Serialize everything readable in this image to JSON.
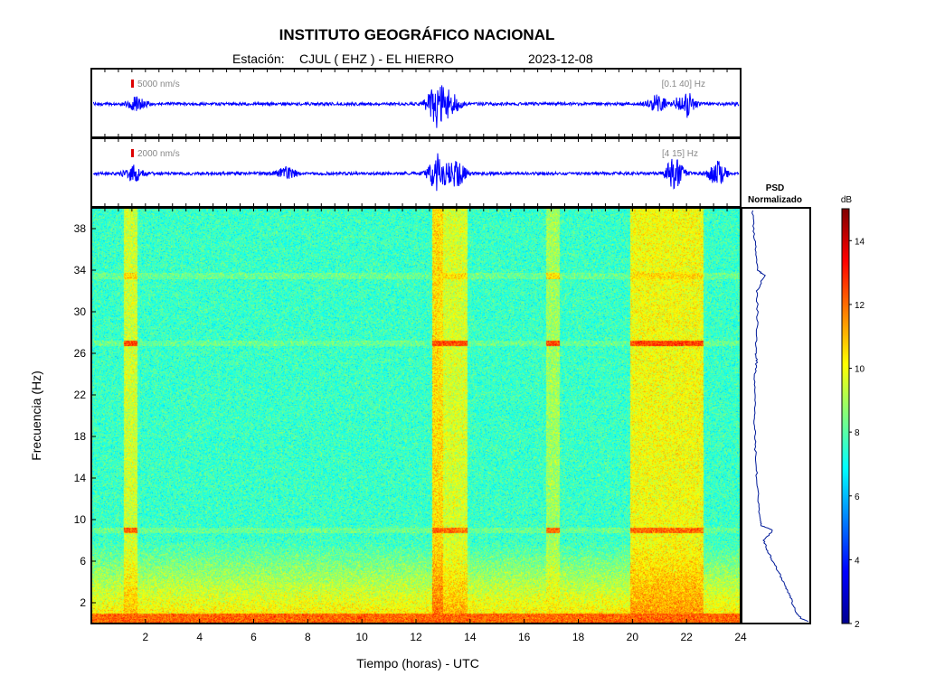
{
  "header": {
    "title": "INSTITUTO GEOGRÁFICO NACIONAL",
    "station_label": "Estación:",
    "station": "CJUL ( EHZ ) - EL HIERRO",
    "date": "2023-12-08"
  },
  "colors": {
    "trace": "#0000ff",
    "scale_mark": "#dd0000",
    "psd_line": "#001a99",
    "frame": "#000000"
  },
  "chart_data": [
    {
      "type": "line",
      "panel": "seismogram-broadband",
      "scale_label": "5000 nm/s",
      "band_label": "[0.1 40] Hz",
      "x_range": [
        0,
        24
      ],
      "bursts": [
        {
          "t": 12.75,
          "amplitude": 0.9
        },
        {
          "t": 13.3,
          "amplitude": 0.45
        },
        {
          "t": 21.0,
          "amplitude": 0.35
        },
        {
          "t": 22.0,
          "amplitude": 0.55
        },
        {
          "t": 1.6,
          "amplitude": 0.3
        }
      ]
    },
    {
      "type": "line",
      "panel": "seismogram-filtered",
      "scale_label": "2000 nm/s",
      "band_label": "[4 15] Hz",
      "x_range": [
        0,
        24
      ],
      "bursts": [
        {
          "t": 12.8,
          "amplitude": 0.75
        },
        {
          "t": 13.5,
          "amplitude": 0.55
        },
        {
          "t": 7.2,
          "amplitude": 0.3
        },
        {
          "t": 21.6,
          "amplitude": 0.6
        },
        {
          "t": 23.2,
          "amplitude": 0.45
        },
        {
          "t": 1.5,
          "amplitude": 0.3
        }
      ]
    },
    {
      "type": "heatmap",
      "panel": "spectrogram",
      "xlabel": "Tiempo (horas) - UTC",
      "ylabel": "Frecuencia  (Hz)",
      "x_range": [
        0,
        24
      ],
      "y_range": [
        0,
        40
      ],
      "x_ticks": [
        2,
        4,
        6,
        8,
        10,
        12,
        14,
        16,
        18,
        20,
        22,
        24
      ],
      "y_ticks": [
        2,
        6,
        10,
        14,
        18,
        22,
        26,
        30,
        34,
        38
      ],
      "colorbar": {
        "label": "dB",
        "range": [
          2,
          15
        ],
        "ticks": [
          2,
          4,
          6,
          8,
          10,
          12,
          14
        ],
        "colormap": "jet"
      },
      "background_level_db": 7.6,
      "high_energy_bands": [
        {
          "t_start": 12.6,
          "t_end": 13.0,
          "level_db": 10.5
        },
        {
          "t_start": 13.0,
          "t_end": 13.9,
          "level_db": 9.6
        },
        {
          "t_start": 19.9,
          "t_end": 22.6,
          "level_db": 10.0
        },
        {
          "t_start": 1.2,
          "t_end": 1.7,
          "level_db": 9.5
        },
        {
          "t_start": 16.8,
          "t_end": 17.3,
          "level_db": 8.9
        }
      ],
      "narrow_lines": [
        {
          "freq": 9.0,
          "level_db": 12.0
        },
        {
          "freq": 27.0,
          "level_db": 12.5
        },
        {
          "freq": 33.5,
          "level_db": 10.5
        }
      ]
    },
    {
      "type": "line",
      "panel": "psd-normalized",
      "title_line1": "PSD",
      "title_line2": "Normalizado",
      "y_range": [
        0,
        40
      ],
      "points": [
        {
          "f": 0.2,
          "v": 1.0
        },
        {
          "f": 0.5,
          "v": 0.9
        },
        {
          "f": 1.0,
          "v": 0.82
        },
        {
          "f": 2.0,
          "v": 0.76
        },
        {
          "f": 3.0,
          "v": 0.7
        },
        {
          "f": 4.0,
          "v": 0.62
        },
        {
          "f": 5.0,
          "v": 0.54
        },
        {
          "f": 6.0,
          "v": 0.45
        },
        {
          "f": 7.0,
          "v": 0.37
        },
        {
          "f": 8.0,
          "v": 0.31
        },
        {
          "f": 9.0,
          "v": 0.45
        },
        {
          "f": 9.4,
          "v": 0.28
        },
        {
          "f": 10.0,
          "v": 0.25
        },
        {
          "f": 12.0,
          "v": 0.22
        },
        {
          "f": 14.0,
          "v": 0.2
        },
        {
          "f": 16.0,
          "v": 0.18
        },
        {
          "f": 18.0,
          "v": 0.17
        },
        {
          "f": 20.0,
          "v": 0.16
        },
        {
          "f": 22.0,
          "v": 0.165
        },
        {
          "f": 24.0,
          "v": 0.17
        },
        {
          "f": 25.3,
          "v": 0.2
        },
        {
          "f": 26.0,
          "v": 0.18
        },
        {
          "f": 28.0,
          "v": 0.2
        },
        {
          "f": 30.0,
          "v": 0.21
        },
        {
          "f": 32.0,
          "v": 0.2
        },
        {
          "f": 33.5,
          "v": 0.32
        },
        {
          "f": 34.0,
          "v": 0.22
        },
        {
          "f": 36.0,
          "v": 0.18
        },
        {
          "f": 38.0,
          "v": 0.15
        },
        {
          "f": 40.0,
          "v": 0.12
        }
      ]
    }
  ]
}
